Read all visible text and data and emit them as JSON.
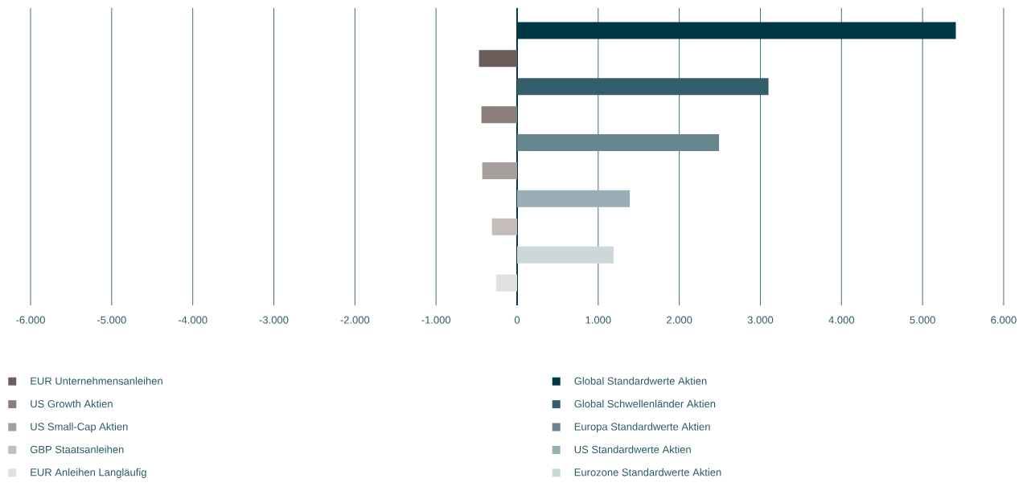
{
  "chart_data": {
    "type": "bar",
    "orientation": "horizontal",
    "categories": [
      null,
      null,
      null,
      null,
      null,
      null,
      null,
      null,
      null,
      null
    ],
    "series": [
      {
        "name": "EUR Unternehmensanleihen",
        "color": "#6b5e58",
        "values": [
          null,
          -470,
          null,
          null,
          null,
          null,
          null,
          null,
          null,
          null
        ]
      },
      {
        "name": "Global Standardwerte Aktien",
        "color": "#023845",
        "values": [
          5410,
          null,
          null,
          null,
          null,
          null,
          null,
          null,
          null,
          null
        ]
      },
      {
        "name": "US Growth Aktien",
        "color": "#8a7f7a",
        "values": [
          null,
          null,
          null,
          -440,
          null,
          null,
          null,
          null,
          null,
          null
        ]
      },
      {
        "name": "Global Schwellenländer Aktien",
        "color": "#345e69",
        "values": [
          null,
          null,
          3100,
          null,
          null,
          null,
          null,
          null,
          null,
          null
        ]
      },
      {
        "name": "US Small-Cap Aktien",
        "color": "#a59e9b",
        "values": [
          null,
          null,
          null,
          null,
          null,
          -430,
          null,
          null,
          null,
          null
        ]
      },
      {
        "name": "Europa Standardwerte Aktien",
        "color": "#67868d",
        "values": [
          null,
          null,
          null,
          null,
          2490,
          null,
          null,
          null,
          null,
          null
        ]
      },
      {
        "name": "GBP Staatsanleihen",
        "color": "#c4bdbb",
        "values": [
          null,
          null,
          null,
          null,
          null,
          null,
          null,
          -310,
          null,
          null
        ]
      },
      {
        "name": "US Standardwerte Aktien",
        "color": "#9aafb5",
        "values": [
          null,
          null,
          null,
          null,
          null,
          null,
          1390,
          null,
          null,
          null
        ]
      },
      {
        "name": "EUR Anleihen Langläufig",
        "color": "#e1e0df",
        "values": [
          null,
          null,
          null,
          null,
          null,
          null,
          null,
          null,
          null,
          -260
        ]
      },
      {
        "name": "Eurozone Standardwerte Aktien",
        "color": "#ccd7d9",
        "values": [
          null,
          null,
          null,
          null,
          null,
          null,
          null,
          null,
          1190,
          null
        ]
      }
    ],
    "xlim": [
      -6000,
      6000
    ],
    "xticks": [
      {
        "value": -6000,
        "label": "-6.000"
      },
      {
        "value": -5000,
        "label": "-5.000"
      },
      {
        "value": -4000,
        "label": "-4.000"
      },
      {
        "value": -3000,
        "label": "-3.000"
      },
      {
        "value": -2000,
        "label": "-2.000"
      },
      {
        "value": -1000,
        "label": "-1.000"
      },
      0,
      {
        "value": 1000,
        "label": "1.000"
      },
      {
        "value": 2000,
        "label": "2.000"
      },
      {
        "value": 3000,
        "label": "3.000"
      },
      {
        "value": 4000,
        "label": "4.000"
      },
      {
        "value": 5000,
        "label": "5.000"
      },
      {
        "value": 6000,
        "label": "6.000"
      }
    ],
    "grid": "x",
    "legend": "bottom"
  }
}
